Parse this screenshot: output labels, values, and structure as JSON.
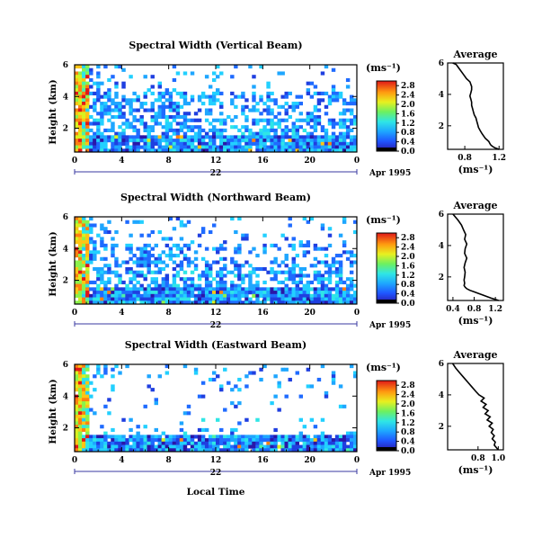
{
  "chart_data": [
    {
      "type": "heatmap",
      "title": "Spectral Width (Vertical Beam)",
      "ylabel": "Height (km)",
      "xlabel": "",
      "date_label": "22",
      "date_suffix": "Apr 1995",
      "x_ticks": [
        "0",
        "4",
        "8",
        "12",
        "16",
        "20",
        "0"
      ],
      "y_ticks": [
        "2",
        "4",
        "6"
      ],
      "xlim": [
        0,
        24
      ],
      "ylim": [
        0.5,
        6.0
      ],
      "colorbar": {
        "label": "(ms⁻¹)",
        "ticks": [
          "0.0",
          "0.4",
          "0.8",
          "1.2",
          "1.6",
          "2.0",
          "2.4",
          "2.8"
        ],
        "range": [
          0,
          3.0
        ]
      }
    },
    {
      "type": "heatmap",
      "title": "Spectral Width (Northward Beam)",
      "ylabel": "Height (km)",
      "xlabel": "",
      "date_label": "22",
      "date_suffix": "Apr 1995",
      "x_ticks": [
        "0",
        "4",
        "8",
        "12",
        "16",
        "20",
        "0"
      ],
      "y_ticks": [
        "2",
        "4",
        "6"
      ],
      "xlim": [
        0,
        24
      ],
      "ylim": [
        0.5,
        6.0
      ],
      "colorbar": {
        "label": "(ms⁻¹)",
        "ticks": [
          "0.0",
          "0.4",
          "0.8",
          "1.2",
          "1.6",
          "2.0",
          "2.4",
          "2.8"
        ],
        "range": [
          0,
          3.0
        ]
      }
    },
    {
      "type": "heatmap",
      "title": "Spectral Width (Eastward Beam)",
      "ylabel": "Height (km)",
      "xlabel": "Local Time",
      "date_label": "22",
      "date_suffix": "Apr 1995",
      "x_ticks": [
        "0",
        "4",
        "8",
        "12",
        "16",
        "20",
        "0"
      ],
      "y_ticks": [
        "2",
        "4",
        "6"
      ],
      "xlim": [
        0,
        24
      ],
      "ylim": [
        0.5,
        6.0
      ],
      "colorbar": {
        "label": "(ms⁻¹)",
        "ticks": [
          "0.0",
          "0.4",
          "0.8",
          "1.2",
          "1.6",
          "2.0",
          "2.4",
          "2.8"
        ],
        "range": [
          0,
          3.0
        ]
      }
    },
    {
      "type": "line",
      "title": "Average",
      "xlabel": "(ms⁻¹)",
      "ylabel": "",
      "x_ticks": [
        "0.8",
        "1.2"
      ],
      "y_ticks": [
        "2",
        "4",
        "6"
      ],
      "xlim": [
        0.6,
        1.25
      ],
      "ylim": [
        0.5,
        6.0
      ],
      "series": [
        {
          "x": [
            0.66,
            0.7,
            0.74,
            0.78,
            0.82,
            0.86,
            0.88,
            0.88,
            0.87,
            0.86,
            0.87,
            0.88,
            0.88,
            0.89,
            0.9,
            0.91,
            0.93,
            0.94,
            0.95,
            0.96,
            0.98,
            1.0,
            1.02,
            1.04,
            1.06,
            1.08,
            1.09,
            1.1,
            1.12,
            1.15,
            1.2
          ],
          "y": [
            6.0,
            5.9,
            5.6,
            5.3,
            5.0,
            4.8,
            4.5,
            4.3,
            4.1,
            3.9,
            3.7,
            3.5,
            3.3,
            3.1,
            2.9,
            2.7,
            2.5,
            2.3,
            2.1,
            1.9,
            1.7,
            1.5,
            1.35,
            1.2,
            1.1,
            1.0,
            0.9,
            0.8,
            0.7,
            0.6,
            0.5
          ]
        }
      ]
    },
    {
      "type": "line",
      "title": "Average",
      "xlabel": "(ms⁻¹)",
      "ylabel": "",
      "x_ticks": [
        "0.4",
        "0.8",
        "1.2"
      ],
      "y_ticks": [
        "2",
        "4",
        "6"
      ],
      "xlim": [
        0.3,
        1.35
      ],
      "ylim": [
        0.5,
        6.0
      ],
      "series": [
        {
          "x": [
            0.4,
            0.5,
            0.56,
            0.6,
            0.64,
            0.62,
            0.66,
            0.63,
            0.62,
            0.66,
            0.63,
            0.61,
            0.63,
            0.62,
            0.61,
            0.62,
            0.61,
            0.63,
            0.66,
            0.72,
            0.8,
            0.88,
            0.96,
            1.04,
            1.12,
            1.2,
            1.26
          ],
          "y": [
            6.0,
            5.6,
            5.3,
            5.0,
            4.7,
            4.4,
            4.1,
            3.8,
            3.5,
            3.2,
            2.9,
            2.6,
            2.3,
            2.0,
            1.8,
            1.6,
            1.45,
            1.35,
            1.25,
            1.15,
            1.05,
            0.95,
            0.85,
            0.75,
            0.65,
            0.57,
            0.5
          ]
        }
      ]
    },
    {
      "type": "line",
      "title": "Average",
      "xlabel": "(ms⁻¹)",
      "ylabel": "",
      "x_ticks": [
        "0.8",
        "1.0"
      ],
      "y_ticks": [
        "2",
        "4",
        "6"
      ],
      "xlim": [
        0.5,
        1.05
      ],
      "ylim": [
        0.5,
        6.0
      ],
      "series": [
        {
          "x": [
            0.55,
            0.58,
            0.62,
            0.66,
            0.7,
            0.74,
            0.78,
            0.81,
            0.86,
            0.83,
            0.88,
            0.85,
            0.9,
            0.87,
            0.92,
            0.89,
            0.94,
            0.91,
            0.95,
            0.93,
            0.96,
            0.94,
            0.97,
            0.96,
            0.98,
            1.0
          ],
          "y": [
            6.0,
            5.7,
            5.4,
            5.1,
            4.8,
            4.5,
            4.2,
            4.0,
            3.8,
            3.6,
            3.4,
            3.2,
            3.0,
            2.8,
            2.6,
            2.4,
            2.2,
            2.0,
            1.8,
            1.6,
            1.4,
            1.2,
            1.0,
            0.8,
            0.65,
            0.5
          ]
        }
      ]
    }
  ]
}
